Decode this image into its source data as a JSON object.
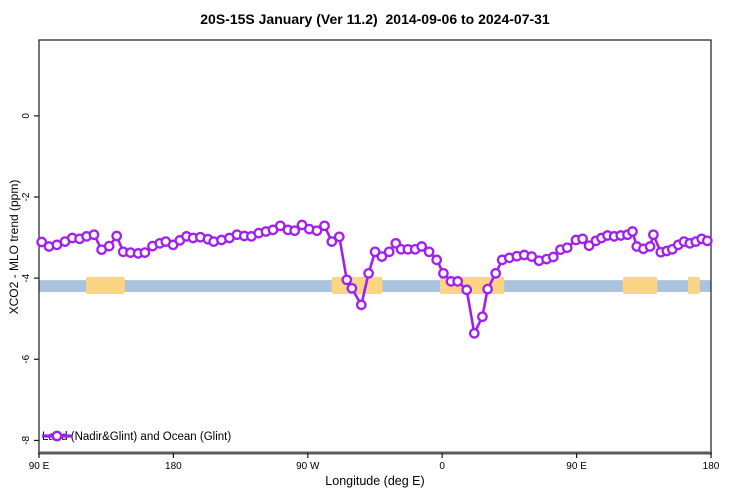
{
  "title": "20S-15S January (Ver 11.2)  2014-09-06 to 2024-07-31",
  "axes": {
    "x_label": "Longitude (deg E)",
    "y_label": "XCO2 - MLO trend (ppm)",
    "x_ticks": [
      {
        "pos": 90,
        "label": "90 E"
      },
      {
        "pos": 180,
        "label": "180"
      },
      {
        "pos": 270,
        "label": "90 W"
      },
      {
        "pos": 360,
        "label": "0"
      },
      {
        "pos": 450,
        "label": "90 E"
      },
      {
        "pos": 540,
        "label": "180"
      }
    ],
    "y_ticks": [
      {
        "pos": 0,
        "label": "0"
      },
      {
        "pos": -2,
        "label": "-2"
      },
      {
        "pos": -4,
        "label": "-4"
      },
      {
        "pos": -6,
        "label": "-6"
      },
      {
        "pos": -8,
        "label": "-8"
      }
    ]
  },
  "legend": {
    "label": "Land (Nadir&Glint) and Ocean (Glint)"
  },
  "colors": {
    "series": "#A020F0",
    "marker_fill": "#ffffff",
    "ocean_band": "#A9C3DF",
    "land_band": "#FBD583",
    "box": "#1a1a1a",
    "bottom_axis": "#5a5a5a",
    "text": "#000000"
  },
  "chart_data": {
    "type": "line",
    "title": "20S-15S January (Ver 11.2)  2014-09-06 to 2024-07-31",
    "xlabel": "Longitude (deg E)",
    "ylabel": "XCO2 - MLO trend (ppm)",
    "x_axis_note": "x is longitude unwrapped eastward from 90E (90 -> 540); 270=90W, 360=0, 450=90E, 540=180",
    "xlim": [
      90,
      540
    ],
    "ylim": [
      1.87,
      -8.31
    ],
    "grid": false,
    "legend_position": "bottom-left-inside",
    "marker": "open-circle",
    "bands": {
      "ocean_band": {
        "x": [
          90,
          540
        ],
        "y": [
          -4.05,
          -4.34
        ],
        "meaning": "ocean (glint) sampling band"
      },
      "land_band_y": [
        -3.97,
        -4.39
      ],
      "land_patches": [
        {
          "x": [
            121.5,
            147.5
          ]
        },
        {
          "x": [
            286.0,
            320.0
          ]
        },
        {
          "x": [
            358.5,
            401.5
          ]
        },
        {
          "x": [
            481.0,
            504.0
          ]
        },
        {
          "x": [
            524.5,
            532.5
          ]
        }
      ]
    },
    "series": [
      {
        "name": "Land (Nadir&Glint) and Ocean (Glint)",
        "points": [
          [
            91.8,
            -3.11
          ],
          [
            96.7,
            -3.22
          ],
          [
            102.0,
            -3.18
          ],
          [
            107.4,
            -3.1
          ],
          [
            112.3,
            -3.01
          ],
          [
            117.2,
            -3.03
          ],
          [
            121.9,
            -2.97
          ],
          [
            126.8,
            -2.93
          ],
          [
            131.9,
            -3.3
          ],
          [
            137.0,
            -3.21
          ],
          [
            142.0,
            -2.96
          ],
          [
            146.4,
            -3.35
          ],
          [
            151.3,
            -3.37
          ],
          [
            156.4,
            -3.39
          ],
          [
            160.9,
            -3.37
          ],
          [
            166.0,
            -3.21
          ],
          [
            170.9,
            -3.14
          ],
          [
            174.9,
            -3.1
          ],
          [
            179.8,
            -3.18
          ],
          [
            184.3,
            -3.07
          ],
          [
            188.8,
            -2.97
          ],
          [
            193.2,
            -3.01
          ],
          [
            198.1,
            -2.99
          ],
          [
            203.2,
            -3.04
          ],
          [
            207.0,
            -3.1
          ],
          [
            212.2,
            -3.06
          ],
          [
            217.5,
            -3.01
          ],
          [
            222.6,
            -2.93
          ],
          [
            227.5,
            -2.96
          ],
          [
            232.2,
            -2.97
          ],
          [
            237.1,
            -2.89
          ],
          [
            242.0,
            -2.85
          ],
          [
            246.7,
            -2.81
          ],
          [
            251.6,
            -2.71
          ],
          [
            256.7,
            -2.81
          ],
          [
            261.2,
            -2.83
          ],
          [
            266.1,
            -2.69
          ],
          [
            271.0,
            -2.79
          ],
          [
            276.1,
            -2.83
          ],
          [
            281.2,
            -2.71
          ],
          [
            286.1,
            -3.1
          ],
          [
            291.1,
            -2.98
          ],
          [
            296.1,
            -4.04
          ],
          [
            299.5,
            -4.25
          ],
          [
            305.8,
            -4.66
          ],
          [
            310.7,
            -3.88
          ],
          [
            315.1,
            -3.35
          ],
          [
            319.6,
            -3.47
          ],
          [
            324.5,
            -3.35
          ],
          [
            328.9,
            -3.14
          ],
          [
            332.5,
            -3.29
          ],
          [
            337.0,
            -3.29
          ],
          [
            341.9,
            -3.29
          ],
          [
            346.3,
            -3.22
          ],
          [
            351.2,
            -3.35
          ],
          [
            356.3,
            -3.55
          ],
          [
            360.8,
            -3.88
          ],
          [
            365.9,
            -4.08
          ],
          [
            370.4,
            -4.08
          ],
          [
            376.4,
            -4.29
          ],
          [
            381.5,
            -5.36
          ],
          [
            386.9,
            -4.95
          ],
          [
            390.4,
            -4.27
          ],
          [
            395.8,
            -3.88
          ],
          [
            400.2,
            -3.55
          ],
          [
            404.9,
            -3.5
          ],
          [
            410.0,
            -3.46
          ],
          [
            415.0,
            -3.43
          ],
          [
            419.9,
            -3.47
          ],
          [
            424.8,
            -3.57
          ],
          [
            429.9,
            -3.53
          ],
          [
            434.4,
            -3.48
          ],
          [
            439.2,
            -3.3
          ],
          [
            443.7,
            -3.25
          ],
          [
            449.6,
            -3.06
          ],
          [
            454.0,
            -3.03
          ],
          [
            458.4,
            -3.2
          ],
          [
            462.9,
            -3.08
          ],
          [
            466.7,
            -3.01
          ],
          [
            470.7,
            -2.95
          ],
          [
            475.2,
            -2.97
          ],
          [
            479.6,
            -2.95
          ],
          [
            484.1,
            -2.93
          ],
          [
            487.4,
            -2.85
          ],
          [
            490.3,
            -3.22
          ],
          [
            494.7,
            -3.28
          ],
          [
            499.2,
            -3.22
          ],
          [
            501.4,
            -2.93
          ],
          [
            506.4,
            -3.36
          ],
          [
            510.4,
            -3.33
          ],
          [
            514.1,
            -3.29
          ],
          [
            518.1,
            -3.18
          ],
          [
            521.9,
            -3.1
          ],
          [
            525.9,
            -3.14
          ],
          [
            529.8,
            -3.1
          ],
          [
            533.8,
            -3.03
          ],
          [
            537.5,
            -3.08
          ]
        ]
      }
    ]
  }
}
